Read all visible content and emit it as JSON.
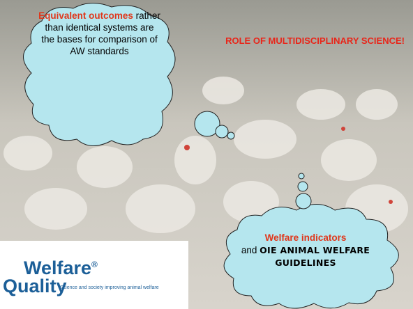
{
  "heading": "ROLE OF MULTIDISCIPLINARY SCIENCE!",
  "cloud_left": {
    "bold": "Equivalent outcomes",
    "text": "rather than identical systems are the bases for comparison of AW standards"
  },
  "cloud_right": {
    "bold": "Welfare indicators",
    "connector": "and",
    "highlight": "OIE ANIMAL WELFARE GUIDELINES"
  },
  "logo": {
    "name_top": "Welfare",
    "registered": "®",
    "name_bottom": "Quality",
    "tagline": "Science and society improving animal welfare"
  }
}
